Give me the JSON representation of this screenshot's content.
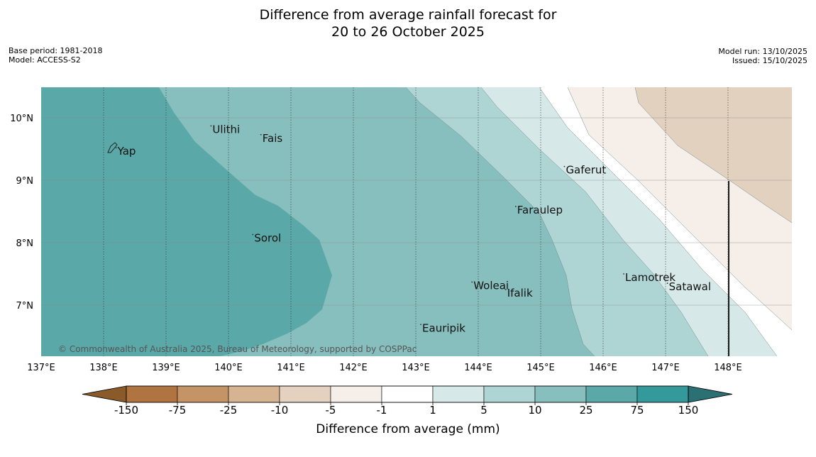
{
  "title": {
    "line1": "Difference from average rainfall forecast for",
    "line2": "20 to 26 October 2025"
  },
  "meta": {
    "base_period": "Base period: 1981-2018",
    "model": "Model: ACCESS-S2",
    "model_run": "Model run: 13/10/2025",
    "issued": "Issued: 15/10/2025"
  },
  "copyright": "© Commonwealth of Australia 2025, Bureau of Meteorology, supported by COSPPac",
  "axes": {
    "lon_labels": [
      "137°E",
      "138°E",
      "139°E",
      "140°E",
      "141°E",
      "142°E",
      "143°E",
      "144°E",
      "145°E",
      "146°E",
      "147°E",
      "148°E"
    ],
    "lat_labels": [
      "10°N",
      "9°N",
      "8°N",
      "7°N"
    ]
  },
  "places": [
    {
      "name": "Yap",
      "lon": 138.2,
      "lat": 9.52
    },
    {
      "name": "Ulithi",
      "lon": 139.72,
      "lat": 9.87
    },
    {
      "name": "Fais",
      "lon": 140.52,
      "lat": 9.73
    },
    {
      "name": "Gaferut",
      "lon": 145.38,
      "lat": 9.22
    },
    {
      "name": "Faraulep",
      "lon": 144.6,
      "lat": 8.58
    },
    {
      "name": "Sorol",
      "lon": 140.39,
      "lat": 8.13
    },
    {
      "name": "Lamotrek",
      "lon": 146.33,
      "lat": 7.5
    },
    {
      "name": "Woleai",
      "lon": 143.9,
      "lat": 7.37
    },
    {
      "name": "Ifalik",
      "lon": 144.44,
      "lat": 7.25
    },
    {
      "name": "Satawal",
      "lon": 147.03,
      "lat": 7.35
    },
    {
      "name": "Eauripik",
      "lon": 143.08,
      "lat": 6.69
    }
  ],
  "legend": {
    "title": "Difference from average (mm)",
    "tick_labels": [
      "-150",
      "-75",
      "-25",
      "-10",
      "-5",
      "-1",
      "1",
      "5",
      "10",
      "25",
      "75",
      "150"
    ],
    "colors": [
      "#8b5a2b",
      "#b07440",
      "#c49467",
      "#d6b391",
      "#e4d1c0",
      "#f5eee9",
      "#ffffff",
      "#d6e9e8",
      "#aed5d4",
      "#87bfbe",
      "#5aa8a8",
      "#34999a",
      "#2b7073"
    ]
  },
  "map_colors": {
    "ocean_land": "#f2f2f2",
    "fills": [
      "#e3d1bf",
      "#f5eee9",
      "#ffffff",
      "#d6e9e8",
      "#aed5d4",
      "#87bfbe",
      "#5aa8a8"
    ]
  }
}
